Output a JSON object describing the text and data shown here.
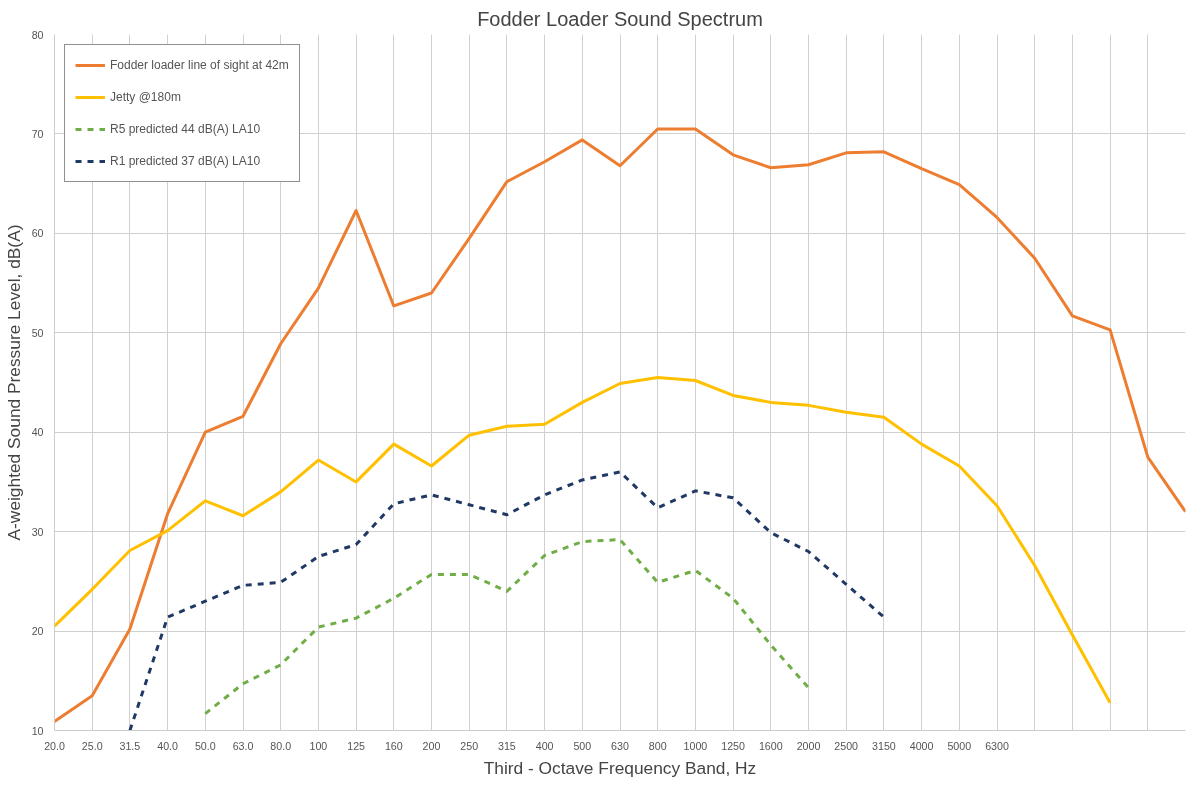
{
  "chart_data": {
    "type": "line",
    "title": "Fodder Loader Sound Spectrum",
    "xlabel": "Third - Octave Frequency Band, Hz",
    "ylabel": "A-weighted Sound Pressure Level, dB(A)",
    "categories": [
      "20.0",
      "25.0",
      "31.5",
      "40.0",
      "50.0",
      "63.0",
      "80.0",
      "100",
      "125",
      "160",
      "200",
      "250",
      "315",
      "400",
      "500",
      "630",
      "800",
      "1000",
      "1250",
      "1600",
      "2000",
      "2500",
      "3150",
      "4000",
      "5000",
      "6300",
      null,
      null,
      null,
      null,
      null
    ],
    "series": [
      {
        "name": "Fodder loader line of sight at 42m",
        "color": "#ed7d31",
        "line_style": "solid",
        "values": [
          10.9,
          13.5,
          20.2,
          31.8,
          40.0,
          41.6,
          48.9,
          54.5,
          62.3,
          52.7,
          54.0,
          59.5,
          65.2,
          67.2,
          69.4,
          66.8,
          70.5,
          70.5,
          67.9,
          66.6,
          66.9,
          68.1,
          68.2,
          66.5,
          64.9,
          61.6,
          57.5,
          51.7,
          50.3,
          37.5,
          32.0
        ]
      },
      {
        "name": "Jetty @180m",
        "color": "#ffc000",
        "line_style": "solid",
        "values": [
          20.5,
          24.2,
          28.1,
          30.1,
          33.1,
          31.6,
          34.0,
          37.2,
          35.0,
          38.8,
          36.6,
          39.7,
          40.6,
          40.8,
          43.0,
          44.9,
          45.5,
          45.2,
          43.7,
          43.0,
          42.7,
          42.0,
          41.5,
          38.8,
          36.6,
          32.6,
          26.6,
          19.6,
          12.8,
          null,
          null
        ]
      },
      {
        "name": "R5 predicted 44 dB(A) LA10",
        "color": "#70ad47",
        "line_style": "dashed",
        "values": [
          null,
          null,
          null,
          null,
          11.7,
          14.7,
          16.6,
          20.4,
          21.3,
          23.3,
          25.7,
          25.7,
          24.0,
          27.6,
          29.0,
          29.2,
          24.9,
          26.1,
          23.3,
          18.6,
          14.3,
          null,
          null,
          null,
          null,
          null,
          null,
          null,
          null,
          null,
          null
        ]
      },
      {
        "name": "R1 predicted 37 dB(A) LA10",
        "color": "#203864",
        "line_style": "dashed",
        "values": [
          null,
          null,
          10.0,
          21.4,
          23.0,
          24.6,
          24.9,
          27.5,
          28.7,
          32.8,
          33.7,
          32.7,
          31.7,
          33.7,
          35.2,
          36.0,
          32.4,
          34.1,
          33.4,
          29.9,
          28.0,
          24.7,
          21.4,
          null,
          null,
          null,
          null,
          null,
          null,
          null,
          null
        ]
      }
    ],
    "ylim": [
      10,
      80
    ],
    "yticks": [
      10,
      20,
      30,
      40,
      50,
      60,
      70,
      80
    ],
    "grid": true,
    "legend": "top left"
  }
}
